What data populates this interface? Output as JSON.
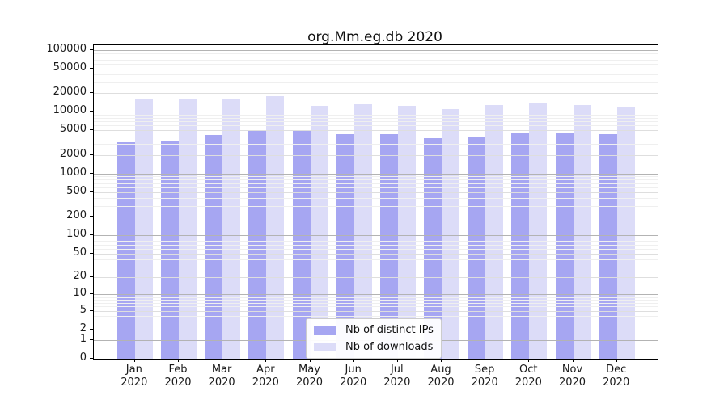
{
  "chart_data": {
    "type": "bar",
    "title": "org.Mm.eg.db 2020",
    "categories": [
      {
        "month": "Jan",
        "year": "2020"
      },
      {
        "month": "Feb",
        "year": "2020"
      },
      {
        "month": "Mar",
        "year": "2020"
      },
      {
        "month": "Apr",
        "year": "2020"
      },
      {
        "month": "May",
        "year": "2020"
      },
      {
        "month": "Jun",
        "year": "2020"
      },
      {
        "month": "Jul",
        "year": "2020"
      },
      {
        "month": "Aug",
        "year": "2020"
      },
      {
        "month": "Sep",
        "year": "2020"
      },
      {
        "month": "Oct",
        "year": "2020"
      },
      {
        "month": "Nov",
        "year": "2020"
      },
      {
        "month": "Dec",
        "year": "2020"
      }
    ],
    "series": [
      {
        "name": "Nb of distinct IPs",
        "color": "#a6a6f2",
        "values": [
          3200,
          3400,
          4200,
          4900,
          5100,
          4400,
          4300,
          3800,
          4000,
          4600,
          4700,
          4400
        ]
      },
      {
        "name": "Nb of downloads",
        "color": "#dcdcf8",
        "values": [
          16500,
          16200,
          16400,
          17800,
          12700,
          13500,
          12500,
          11100,
          12900,
          14100,
          12900,
          12100
        ]
      }
    ],
    "y_scale": "log1p",
    "ylim": [
      0,
      120000
    ],
    "y_ticks": [
      0,
      1,
      2,
      5,
      10,
      20,
      50,
      100,
      200,
      500,
      1000,
      2000,
      5000,
      10000,
      20000,
      50000,
      100000
    ],
    "grid": "horizontal",
    "legend_position": "lower-center"
  }
}
